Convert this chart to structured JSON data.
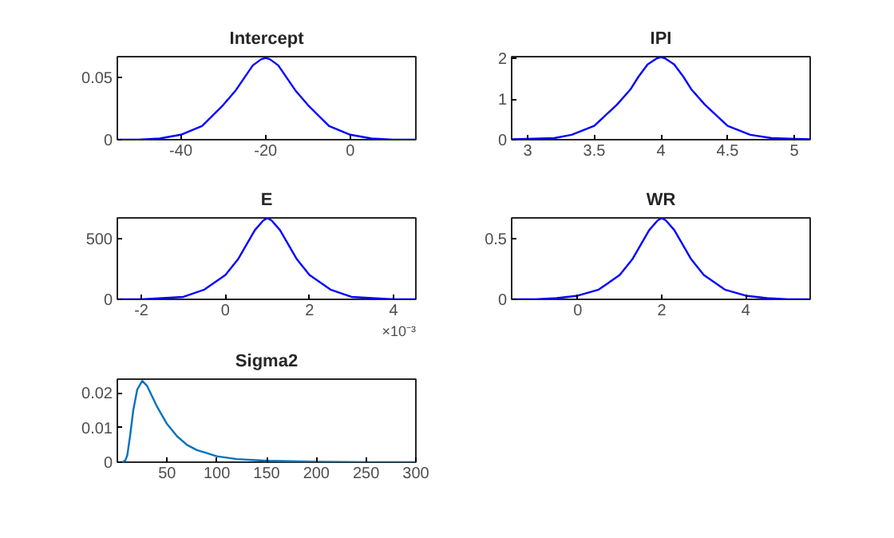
{
  "chart_data": [
    {
      "type": "line",
      "title": "Intercept",
      "color": "#0000ff",
      "grid": false,
      "x": [
        -55,
        -50,
        -45,
        -40,
        -35,
        -30,
        -27,
        -25,
        -23,
        -21,
        -20,
        -19,
        -17,
        -15,
        -13,
        -10,
        -5,
        0,
        5,
        10,
        15.5
      ],
      "values": [
        0,
        0,
        0.001,
        0.004,
        0.011,
        0.028,
        0.04,
        0.05,
        0.06,
        0.065,
        0.066,
        0.065,
        0.06,
        0.05,
        0.04,
        0.028,
        0.011,
        0.004,
        0.001,
        0,
        0
      ],
      "xlim": [
        -55,
        15.5
      ],
      "ylim": [
        0,
        0.067
      ],
      "xticks": [
        -40,
        -20,
        0
      ],
      "yticks": [
        0,
        0.05
      ]
    },
    {
      "type": "line",
      "title": "IPI",
      "color": "#0000ff",
      "grid": false,
      "x": [
        2.88,
        3.0,
        3.2,
        3.33,
        3.5,
        3.67,
        3.77,
        3.83,
        3.9,
        3.97,
        4,
        4.03,
        4.1,
        4.17,
        4.23,
        4.33,
        4.5,
        4.67,
        4.83,
        5,
        5.12
      ],
      "values": [
        0.01,
        0.02,
        0.04,
        0.12,
        0.34,
        0.86,
        1.23,
        1.54,
        1.85,
        2.0,
        2.03,
        2.0,
        1.85,
        1.54,
        1.23,
        0.86,
        0.34,
        0.12,
        0.04,
        0.02,
        0.01
      ],
      "xlim": [
        2.88,
        5.12
      ],
      "ylim": [
        0,
        2.04
      ],
      "xticks": [
        3,
        3.5,
        4,
        4.5,
        5
      ],
      "yticks": [
        0,
        1,
        2
      ]
    },
    {
      "type": "line",
      "title": "E",
      "color": "#0000ff",
      "grid": false,
      "x": [
        -2.57,
        -2,
        -1.5,
        -1,
        -0.5,
        0,
        0.3,
        0.5,
        0.7,
        0.9,
        1,
        1.1,
        1.3,
        1.5,
        1.7,
        2,
        2.5,
        3,
        3.5,
        4,
        4.53
      ],
      "values": [
        0,
        0,
        10,
        20,
        80,
        200,
        330,
        450,
        570,
        650,
        670,
        650,
        570,
        450,
        330,
        200,
        80,
        20,
        10,
        0,
        0
      ],
      "xlim": [
        -2.57,
        4.53
      ],
      "ylim": [
        0,
        671
      ],
      "xticks": [
        -2,
        0,
        2,
        4
      ],
      "yticks": [
        0,
        500
      ],
      "annotations": [
        "×10⁻³"
      ]
    },
    {
      "type": "line",
      "title": "WR",
      "color": "#0000ff",
      "grid": false,
      "x": [
        -1.57,
        -1,
        -0.5,
        0,
        0.5,
        1,
        1.3,
        1.5,
        1.7,
        1.9,
        2,
        2.1,
        2.3,
        2.5,
        2.7,
        3,
        3.5,
        4,
        4.5,
        5,
        5.53
      ],
      "values": [
        0,
        0,
        0.01,
        0.03,
        0.08,
        0.2,
        0.33,
        0.45,
        0.57,
        0.65,
        0.67,
        0.65,
        0.57,
        0.45,
        0.33,
        0.2,
        0.08,
        0.03,
        0.01,
        0,
        0
      ],
      "xlim": [
        -1.57,
        5.53
      ],
      "ylim": [
        0,
        0.671
      ],
      "xticks": [
        0,
        2,
        4
      ],
      "yticks": [
        0,
        0.5
      ]
    },
    {
      "type": "line",
      "title": "Sigma2",
      "color": "#0072bd",
      "grid": false,
      "x": [
        5,
        8,
        10,
        13,
        16,
        20,
        25,
        30,
        35,
        40,
        50,
        60,
        70,
        80,
        100,
        120,
        150,
        200,
        250,
        300
      ],
      "values": [
        0,
        0.0005,
        0.002,
        0.008,
        0.015,
        0.021,
        0.0235,
        0.022,
        0.019,
        0.016,
        0.011,
        0.0075,
        0.005,
        0.0035,
        0.0017,
        0.0009,
        0.0004,
        0.0001,
        0,
        0
      ],
      "xlim": [
        0,
        300
      ],
      "ylim": [
        0,
        0.024
      ],
      "xticks": [
        50,
        100,
        150,
        200,
        250,
        300
      ],
      "yticks": [
        0,
        0.01,
        0.02
      ]
    }
  ]
}
